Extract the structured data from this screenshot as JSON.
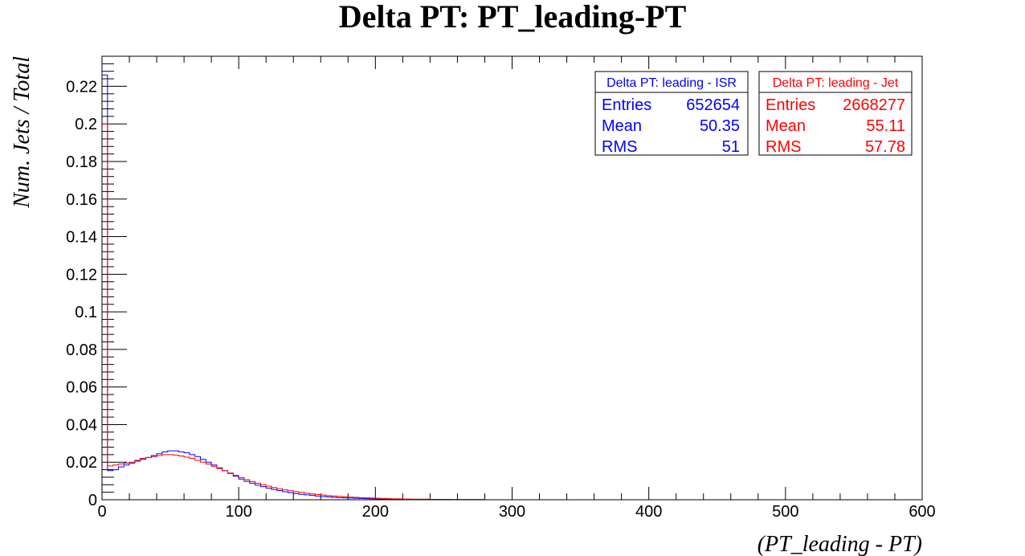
{
  "chart_data": {
    "type": "line",
    "title": "Delta PT: PT_leading-PT",
    "xlabel": "(PT_leading - PT)",
    "ylabel": "Num. Jets / Total",
    "xlim": [
      0,
      600
    ],
    "ylim": [
      0,
      0.236
    ],
    "x_ticks": [
      "0",
      "100",
      "200",
      "300",
      "400",
      "500",
      "600"
    ],
    "y_ticks": [
      "0",
      "0.02",
      "0.04",
      "0.06",
      "0.08",
      "0.1",
      "0.12",
      "0.14",
      "0.16",
      "0.18",
      "0.2",
      "0.22"
    ],
    "grid": false,
    "bin_width": 4,
    "series": [
      {
        "name": "Delta PT: leading - ISR",
        "color": "#0000ff",
        "stats": [
          {
            "label": "Entries",
            "value": "652654"
          },
          {
            "label": "Mean",
            "value": "50.35"
          },
          {
            "label": "RMS",
            "value": "51"
          }
        ],
        "values": [
          0.226,
          0.0155,
          0.016,
          0.0175,
          0.0185,
          0.0195,
          0.0205,
          0.0215,
          0.0225,
          0.0235,
          0.0245,
          0.0255,
          0.026,
          0.026,
          0.0255,
          0.025,
          0.024,
          0.023,
          0.0215,
          0.02,
          0.0185,
          0.017,
          0.0155,
          0.014,
          0.0125,
          0.011,
          0.0098,
          0.0088,
          0.0078,
          0.007,
          0.0062,
          0.0055,
          0.0049,
          0.0043,
          0.0038,
          0.0033,
          0.0029,
          0.0026,
          0.0023,
          0.002,
          0.0017,
          0.0015,
          0.0013,
          0.0011,
          0.001,
          0.0009,
          0.0008,
          0.0007,
          0.0006,
          0.0005,
          0.0004,
          0.0004,
          0.0003,
          0.0003,
          0.0002,
          0.0002,
          0.0002,
          0.0001,
          0.0001,
          0.0001,
          0.0001,
          0.0001,
          0.0001,
          0.0001,
          0.0001,
          0.0001,
          0.0001,
          0.0001,
          0.0001,
          0.0001
        ]
      },
      {
        "name": "Delta PT: leading - Jet",
        "color": "#ff0000",
        "stats": [
          {
            "label": "Entries",
            "value": "2668277"
          },
          {
            "label": "Mean",
            "value": "55.11"
          },
          {
            "label": "RMS",
            "value": "57.78"
          }
        ],
        "values": [
          0.2,
          0.018,
          0.0185,
          0.019,
          0.0195,
          0.02,
          0.021,
          0.022,
          0.0225,
          0.023,
          0.0235,
          0.024,
          0.024,
          0.0238,
          0.0233,
          0.0227,
          0.022,
          0.021,
          0.02,
          0.019,
          0.0178,
          0.0166,
          0.0154,
          0.0142,
          0.013,
          0.0118,
          0.0107,
          0.0097,
          0.0088,
          0.008,
          0.0072,
          0.0065,
          0.0059,
          0.0053,
          0.0048,
          0.0043,
          0.0039,
          0.0035,
          0.0031,
          0.0028,
          0.0025,
          0.0022,
          0.002,
          0.0018,
          0.0016,
          0.0014,
          0.0013,
          0.0011,
          0.001,
          0.0009,
          0.0008,
          0.0007,
          0.0006,
          0.0005,
          0.0005,
          0.0004,
          0.0004,
          0.0003,
          0.0003,
          0.0003,
          0.0002,
          0.0002,
          0.0002,
          0.0002,
          0.0001,
          0.0001,
          0.0001,
          0.0001,
          0.0001,
          0.0001
        ]
      }
    ]
  }
}
